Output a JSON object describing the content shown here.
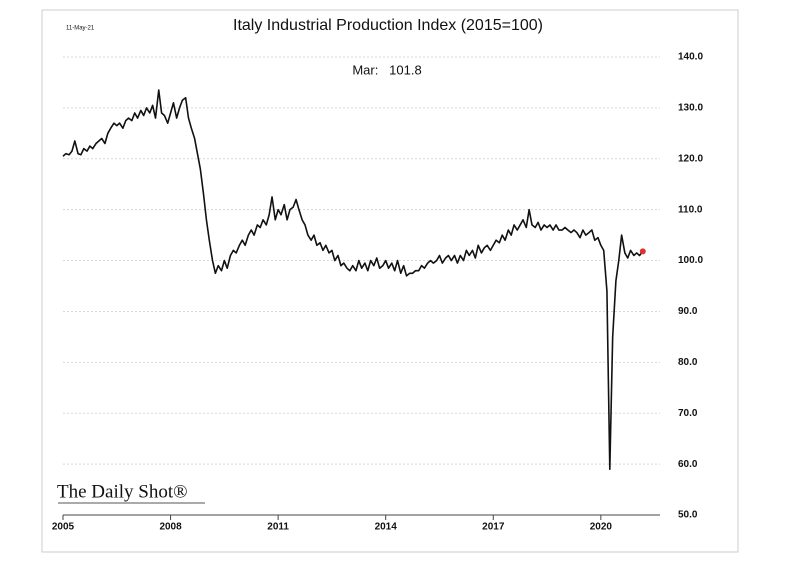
{
  "chart_data": {
    "type": "line",
    "title": "Italy Industrial Production Index (2015=100)",
    "date_label": "11-May-21",
    "annotation": "Mar:   101.8",
    "logo": "The Daily Shot®",
    "xlim": [
      2005,
      2021.65
    ],
    "xticks": [
      2005,
      2008,
      2011,
      2014,
      2017,
      2020
    ],
    "ylim": [
      50,
      140
    ],
    "yticks": [
      {
        "value": 50,
        "label": "50.0"
      },
      {
        "value": 60,
        "label": "60.0"
      },
      {
        "value": 70,
        "label": "70.0"
      },
      {
        "value": 80,
        "label": "80.0"
      },
      {
        "value": 90,
        "label": "90.0"
      },
      {
        "value": 100,
        "label": "100.0"
      },
      {
        "value": 110,
        "label": "110.0"
      },
      {
        "value": 120,
        "label": "120.0"
      },
      {
        "value": 130,
        "label": "130.0"
      },
      {
        "value": 140,
        "label": "140.0"
      }
    ],
    "grid": true,
    "marker_color": "#e03030",
    "x": [
      2005.0,
      2005.08,
      2005.17,
      2005.25,
      2005.33,
      2005.42,
      2005.5,
      2005.58,
      2005.67,
      2005.75,
      2005.83,
      2005.92,
      2006.0,
      2006.08,
      2006.17,
      2006.25,
      2006.33,
      2006.42,
      2006.5,
      2006.58,
      2006.67,
      2006.75,
      2006.83,
      2006.92,
      2007.0,
      2007.08,
      2007.17,
      2007.25,
      2007.33,
      2007.42,
      2007.5,
      2007.58,
      2007.67,
      2007.75,
      2007.83,
      2007.92,
      2008.0,
      2008.08,
      2008.17,
      2008.25,
      2008.33,
      2008.42,
      2008.5,
      2008.58,
      2008.67,
      2008.75,
      2008.83,
      2008.92,
      2009.0,
      2009.08,
      2009.17,
      2009.25,
      2009.33,
      2009.42,
      2009.5,
      2009.58,
      2009.67,
      2009.75,
      2009.83,
      2009.92,
      2010.0,
      2010.08,
      2010.17,
      2010.25,
      2010.33,
      2010.42,
      2010.5,
      2010.58,
      2010.67,
      2010.75,
      2010.83,
      2010.92,
      2011.0,
      2011.08,
      2011.17,
      2011.25,
      2011.33,
      2011.42,
      2011.5,
      2011.58,
      2011.67,
      2011.75,
      2011.83,
      2011.92,
      2012.0,
      2012.08,
      2012.17,
      2012.25,
      2012.33,
      2012.42,
      2012.5,
      2012.58,
      2012.67,
      2012.75,
      2012.83,
      2012.92,
      2013.0,
      2013.08,
      2013.17,
      2013.25,
      2013.33,
      2013.42,
      2013.5,
      2013.58,
      2013.67,
      2013.75,
      2013.83,
      2013.92,
      2014.0,
      2014.08,
      2014.17,
      2014.25,
      2014.33,
      2014.42,
      2014.5,
      2014.58,
      2014.67,
      2014.75,
      2014.83,
      2014.92,
      2015.0,
      2015.08,
      2015.17,
      2015.25,
      2015.33,
      2015.42,
      2015.5,
      2015.58,
      2015.67,
      2015.75,
      2015.83,
      2015.92,
      2016.0,
      2016.08,
      2016.17,
      2016.25,
      2016.33,
      2016.42,
      2016.5,
      2016.58,
      2016.67,
      2016.75,
      2016.83,
      2016.92,
      2017.0,
      2017.08,
      2017.17,
      2017.25,
      2017.33,
      2017.42,
      2017.5,
      2017.58,
      2017.67,
      2017.75,
      2017.83,
      2017.92,
      2018.0,
      2018.08,
      2018.17,
      2018.25,
      2018.33,
      2018.42,
      2018.5,
      2018.58,
      2018.67,
      2018.75,
      2018.83,
      2018.92,
      2019.0,
      2019.08,
      2019.17,
      2019.25,
      2019.33,
      2019.42,
      2019.5,
      2019.58,
      2019.67,
      2019.75,
      2019.83,
      2019.92,
      2020.0,
      2020.08,
      2020.17,
      2020.25,
      2020.33,
      2020.42,
      2020.5,
      2020.58,
      2020.67,
      2020.75,
      2020.83,
      2020.92,
      2021.0,
      2021.08,
      2021.17
    ],
    "series": [
      {
        "name": "Italy Industrial Production Index",
        "color": "#111111",
        "values": [
          120.5,
          121,
          120.8,
          121.5,
          123.5,
          121,
          120.8,
          122,
          121.5,
          122.5,
          122,
          123,
          123.5,
          124,
          123,
          125,
          126,
          127,
          126.5,
          127,
          126,
          127.5,
          128,
          127.5,
          129,
          128,
          129.5,
          128.5,
          130,
          129,
          130.5,
          128,
          133.5,
          129,
          128.5,
          127,
          129,
          131,
          128,
          130,
          131.5,
          132,
          128,
          126,
          124,
          121,
          118,
          113,
          108,
          104,
          100,
          97.5,
          99,
          98,
          100,
          98.5,
          101,
          102,
          101.5,
          103,
          104,
          103,
          105,
          106,
          105,
          107,
          106.5,
          108,
          107,
          109,
          112.5,
          108,
          110,
          109,
          111,
          108,
          110,
          110.5,
          112,
          110,
          108,
          107,
          105,
          104,
          105,
          103,
          103.5,
          102,
          103,
          101.5,
          102,
          100,
          101,
          99,
          99.5,
          98.5,
          98,
          99,
          98,
          100,
          98.5,
          99.5,
          98,
          100,
          99,
          100.5,
          98.5,
          99,
          100,
          98.5,
          99.5,
          98,
          100,
          97.5,
          99,
          97,
          97.5,
          97.5,
          98,
          98,
          99,
          98.5,
          99.5,
          100,
          99.5,
          100,
          101,
          99.5,
          100.5,
          101,
          100,
          101,
          99.5,
          101,
          100,
          102,
          101,
          102,
          100.5,
          103,
          101.5,
          102.5,
          103,
          102,
          103,
          104,
          103.5,
          105,
          104,
          106,
          105,
          107,
          106,
          107,
          108,
          106.5,
          110,
          107,
          106.5,
          107.5,
          106,
          107,
          106.5,
          107,
          106,
          107,
          106,
          106,
          106.5,
          106,
          105.5,
          106,
          105.5,
          104.5,
          106,
          105,
          105.5,
          106,
          104,
          104.5,
          103,
          102,
          94,
          59,
          85,
          96,
          100,
          105,
          101.5,
          100.5,
          102,
          101,
          101.5,
          101,
          101.8
        ]
      }
    ]
  }
}
